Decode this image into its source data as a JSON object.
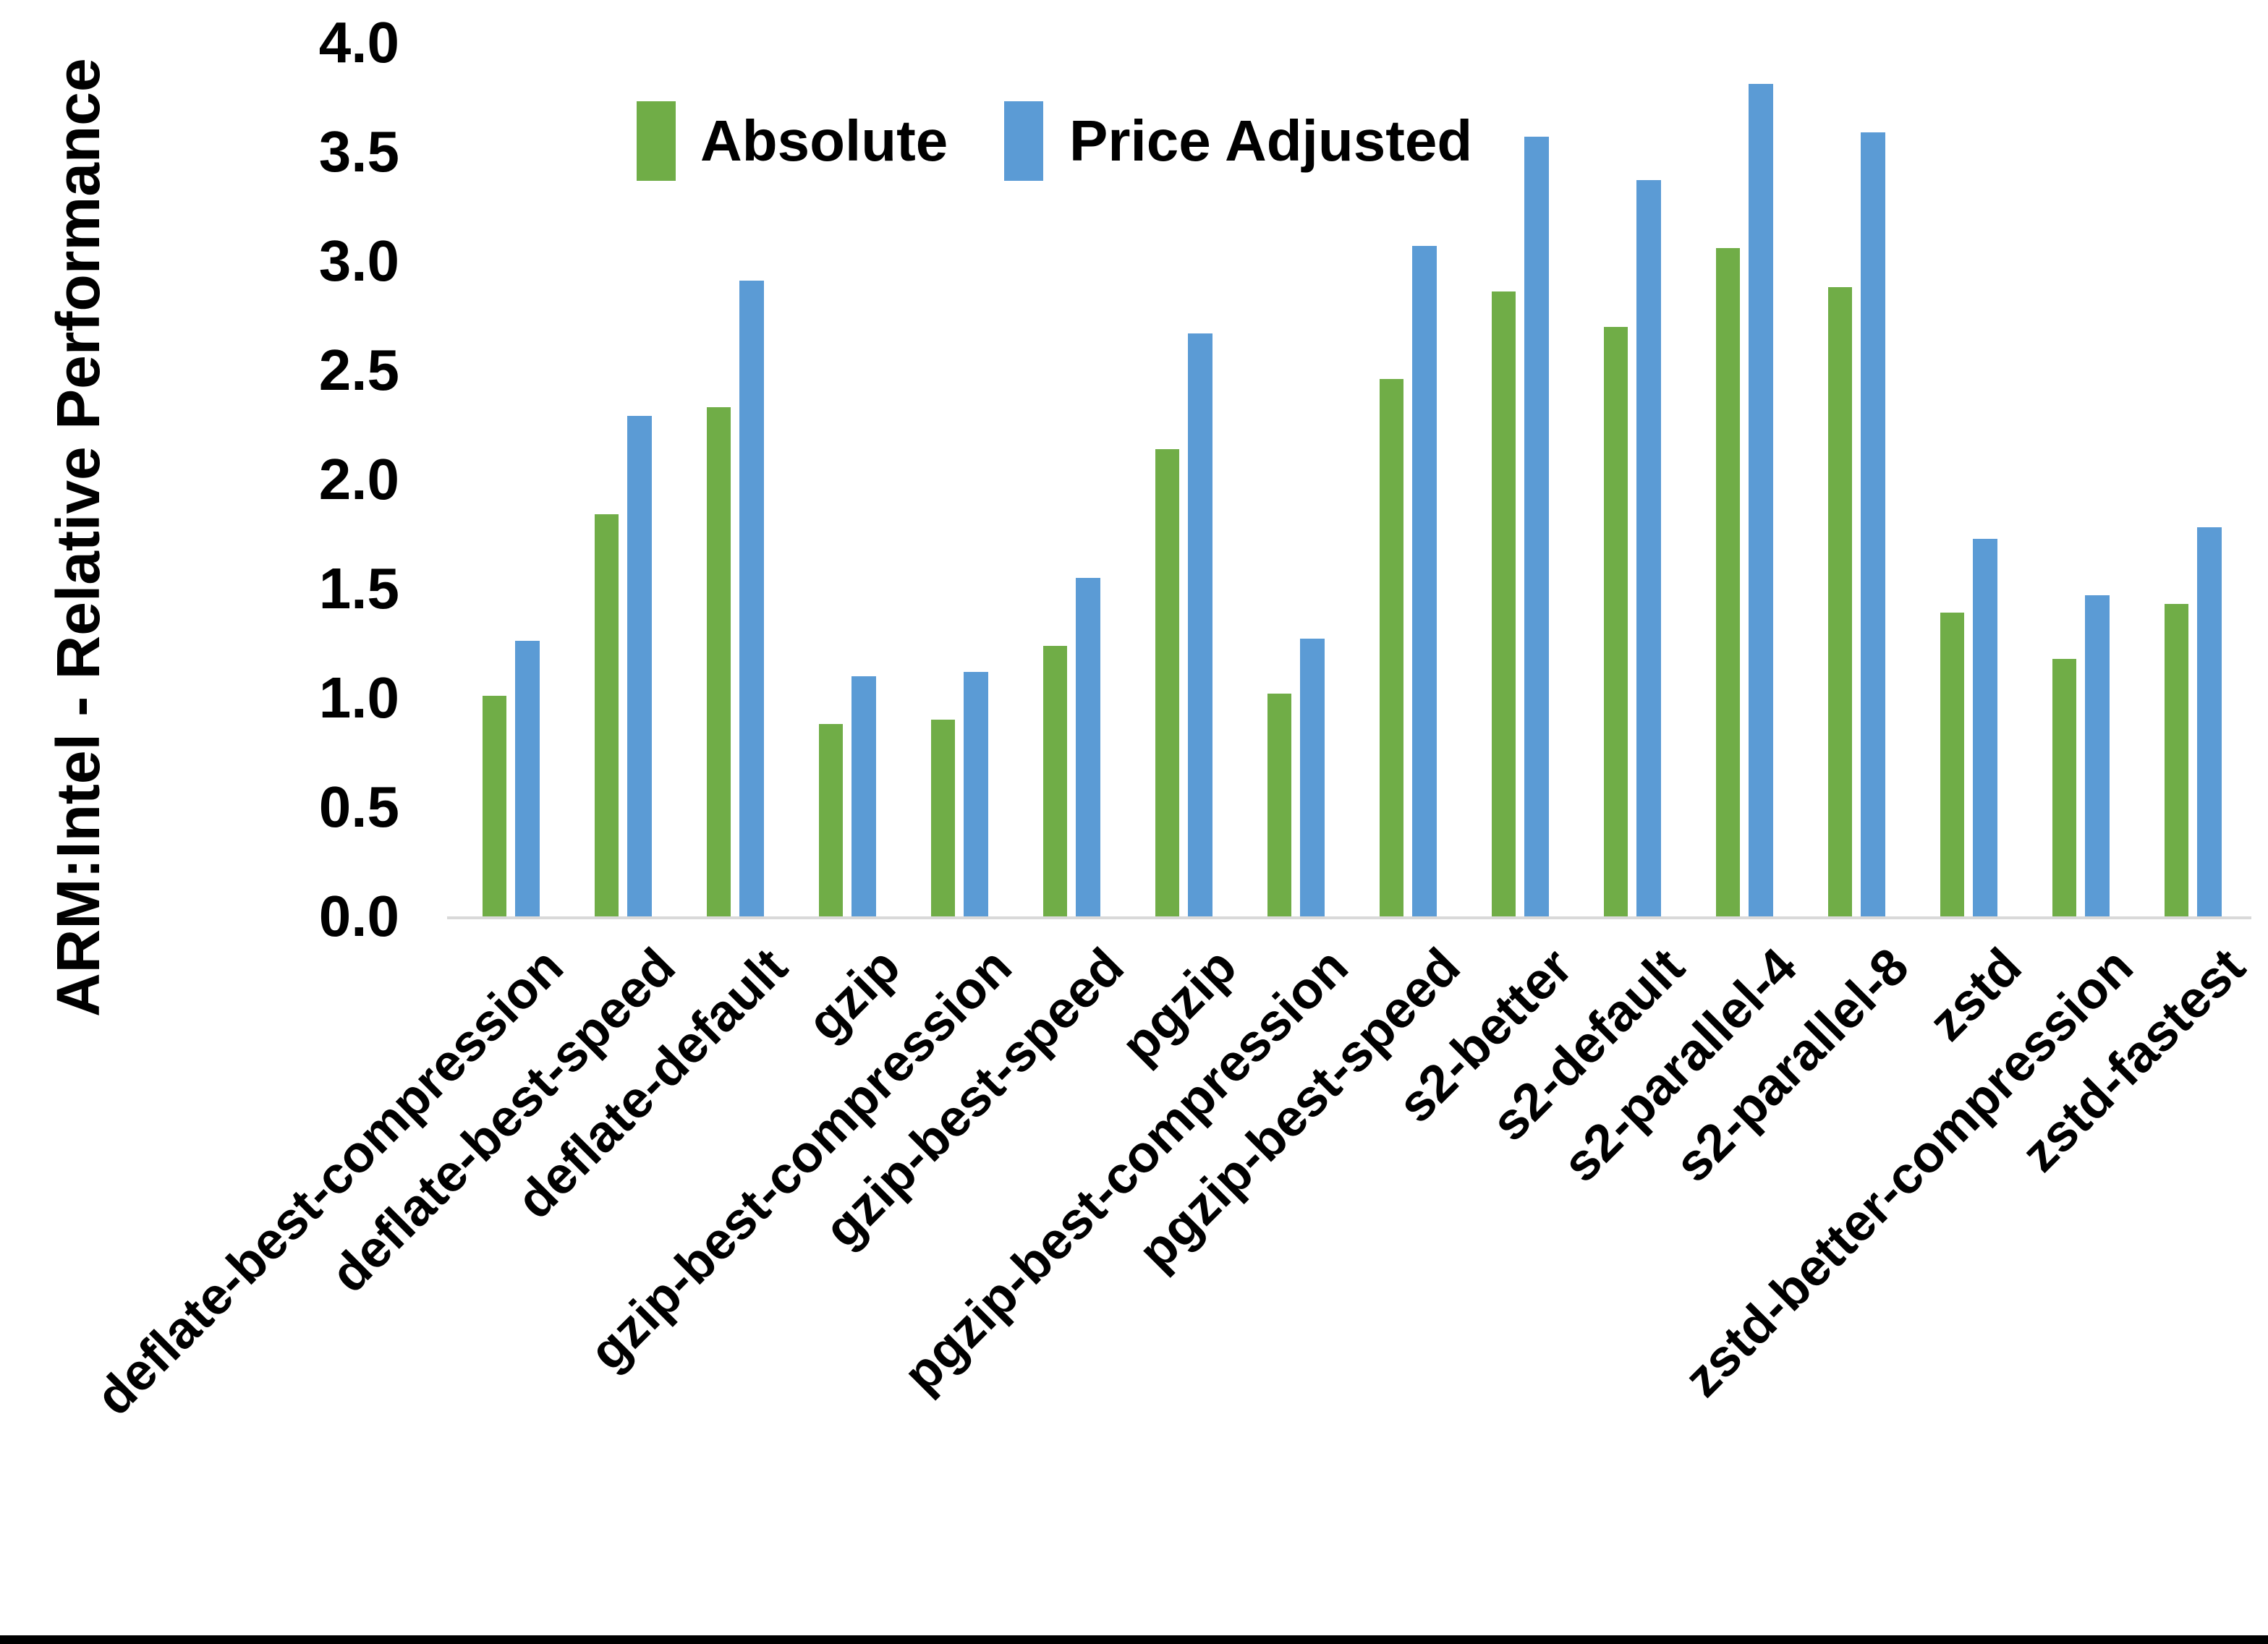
{
  "chart_data": {
    "type": "bar",
    "title": "",
    "xlabel": "",
    "ylabel": "ARM:Intel - Relative Performance",
    "ylim": [
      0.0,
      4.0
    ],
    "ytick_step": 0.5,
    "ytick_labels": [
      "0.0",
      "0.5",
      "1.0",
      "1.5",
      "2.0",
      "2.5",
      "3.0",
      "3.5",
      "4.0"
    ],
    "grid": false,
    "legend_position": "top-center",
    "categories": [
      "deflate-best-compression",
      "deflate-best-speed",
      "deflate-default",
      "gzip",
      "gzip-best-compression",
      "gzip-best-speed",
      "pgzip",
      "pgzip-best-compression",
      "pgzip-best-speed",
      "s2-better",
      "s2-default",
      "s2-parallel-4",
      "s2-parallel-8",
      "zstd",
      "zstd-better-compression",
      "zstd-fastest"
    ],
    "series": [
      {
        "name": "Absolute",
        "color": "#70AD47",
        "values": [
          1.01,
          1.84,
          2.33,
          0.88,
          0.9,
          1.24,
          2.14,
          1.02,
          2.46,
          2.86,
          2.7,
          3.06,
          2.88,
          1.39,
          1.18,
          1.43
        ]
      },
      {
        "name": "Price Adjusted",
        "color": "#5B9BD5",
        "values": [
          1.26,
          2.29,
          2.91,
          1.1,
          1.12,
          1.55,
          2.67,
          1.27,
          3.07,
          3.57,
          3.37,
          3.81,
          3.59,
          1.73,
          1.47,
          1.78
        ]
      }
    ]
  },
  "colors": {
    "background": "#FFFFFF",
    "axis_baseline": "#D9D9D9",
    "text": "#000000",
    "bottom_border": "#000000"
  }
}
